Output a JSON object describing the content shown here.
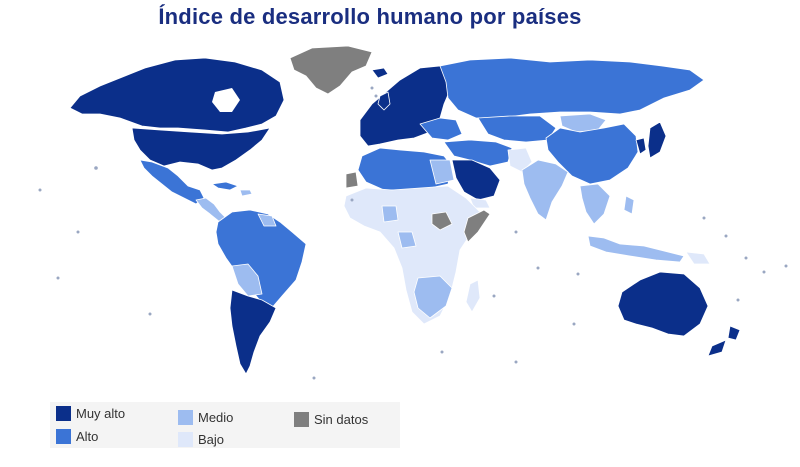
{
  "title": "Índice de desarrollo humano por países",
  "colors": {
    "muy_alto": "#0b2f8a",
    "alto": "#3b74d6",
    "medio": "#9dbcf0",
    "bajo": "#dfe8fa",
    "sin_datos": "#7f7f7f",
    "border": "#ffffff"
  },
  "legend": [
    {
      "key": "muy_alto",
      "label": "Muy alto"
    },
    {
      "key": "alto",
      "label": "Alto"
    },
    {
      "key": "medio",
      "label": "Medio"
    },
    {
      "key": "bajo",
      "label": "Bajo"
    },
    {
      "key": "sin_datos",
      "label": "Sin datos"
    }
  ]
}
